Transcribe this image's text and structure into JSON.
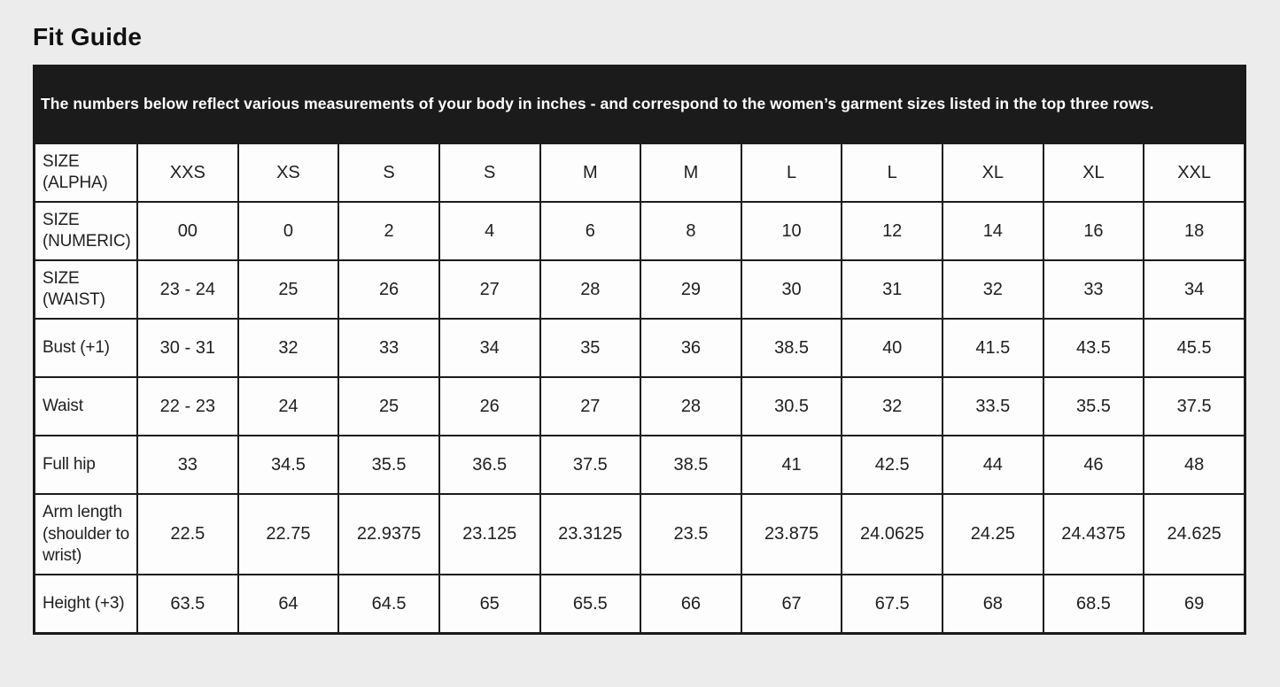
{
  "title": "Fit Guide",
  "table": {
    "description": "The numbers below reflect various measurements of your body in inches - and correspond to the women’s garment sizes listed in the top three rows.",
    "column_count": 11,
    "rows": [
      {
        "label": "SIZE (ALPHA)",
        "values": [
          "XXS",
          "XS",
          "S",
          "S",
          "M",
          "M",
          "L",
          "L",
          "XL",
          "XL",
          "XXL"
        ]
      },
      {
        "label": "SIZE (NUMERIC)",
        "values": [
          "00",
          "0",
          "2",
          "4",
          "6",
          "8",
          "10",
          "12",
          "14",
          "16",
          "18"
        ]
      },
      {
        "label": "SIZE (WAIST)",
        "values": [
          "23 - 24",
          "25",
          "26",
          "27",
          "28",
          "29",
          "30",
          "31",
          "32",
          "33",
          "34"
        ]
      },
      {
        "label": "Bust (+1)",
        "values": [
          "30 - 31",
          "32",
          "33",
          "34",
          "35",
          "36",
          "38.5",
          "40",
          "41.5",
          "43.5",
          "45.5"
        ]
      },
      {
        "label": "Waist",
        "values": [
          "22 - 23",
          "24",
          "25",
          "26",
          "27",
          "28",
          "30.5",
          "32",
          "33.5",
          "35.5",
          "37.5"
        ]
      },
      {
        "label": "Full hip",
        "values": [
          "33",
          "34.5",
          "35.5",
          "36.5",
          "37.5",
          "38.5",
          "41",
          "42.5",
          "44",
          "46",
          "48"
        ]
      },
      {
        "label": "Arm length (shoulder to wrist)",
        "values": [
          "22.5",
          "22.75",
          "22.9375",
          "23.125",
          "23.3125",
          "23.5",
          "23.875",
          "24.0625",
          "24.25",
          "24.4375",
          "24.625"
        ]
      },
      {
        "label": "Height (+3)",
        "values": [
          "63.5",
          "64",
          "64.5",
          "65",
          "65.5",
          "66",
          "67",
          "67.5",
          "68",
          "68.5",
          "69"
        ]
      }
    ]
  },
  "colors": {
    "page_background": "#ececec",
    "header_background": "#1b1b1b",
    "header_text": "#ffffff",
    "cell_background": "#fdfdfd",
    "border": "#1b1b1b",
    "text": "#1f1f1f",
    "title_text": "#111111"
  }
}
